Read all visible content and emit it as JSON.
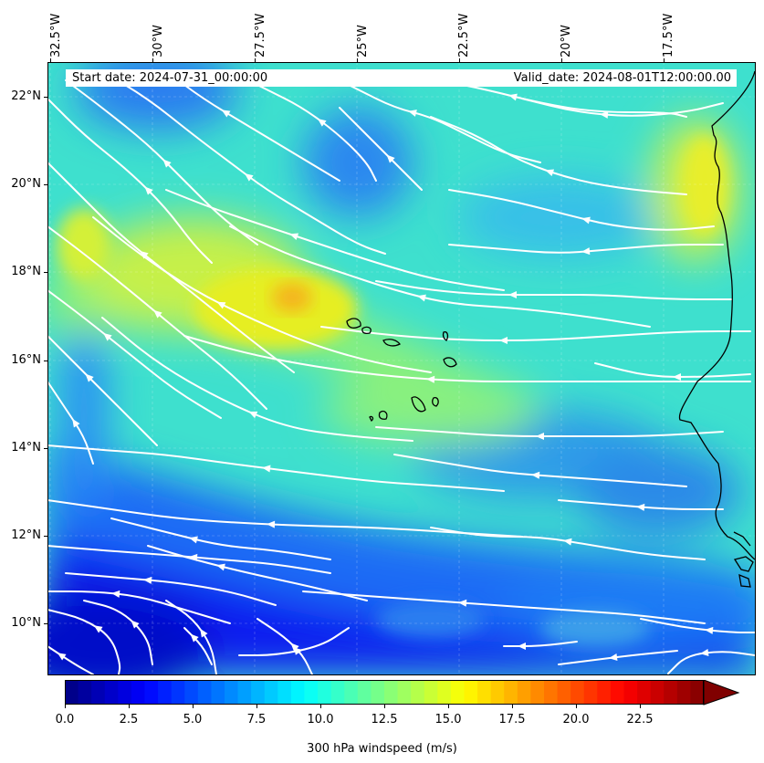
{
  "header": {
    "start_label": "Start date: 2024-07-31_00:00:00",
    "valid_label": "Valid_date: 2024-08-01T12:00:00.00"
  },
  "axes": {
    "lon_labels": [
      "32.5°W",
      "30°W",
      "27.5°W",
      "25°W",
      "22.5°W",
      "20°W",
      "17.5°W"
    ],
    "lat_labels": [
      "22°N",
      "20°N",
      "18°N",
      "16°N",
      "14°N",
      "12°N",
      "10°N"
    ]
  },
  "colorbar": {
    "title": "300 hPa windspeed (m/s)",
    "tick_labels": [
      "0.0",
      "2.5",
      "5.0",
      "7.5",
      "10.0",
      "12.5",
      "15.0",
      "17.5",
      "20.0",
      "22.5"
    ],
    "ticks": [
      0,
      2.5,
      5,
      7.5,
      10,
      12.5,
      15,
      17.5,
      20,
      22.5
    ],
    "range": [
      0,
      25
    ],
    "extend": "max",
    "colormap": "jet"
  },
  "map": {
    "projection": "PlateCarree",
    "lon_range": [
      -32.8,
      -15.3
    ],
    "lat_range": [
      8.9,
      22.8
    ],
    "field": "300 hPa windspeed",
    "streamline_color": "#ffffff",
    "coastline_color": "#000000",
    "wind_direction": "easterly"
  }
}
